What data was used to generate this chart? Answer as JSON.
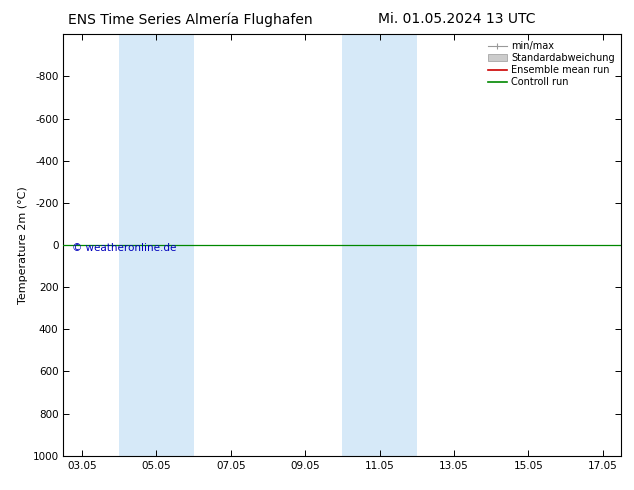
{
  "title_left": "ENS Time Series Almería Flughafen",
  "title_right": "Mi. 01.05.2024 13 UTC",
  "ylabel": "Temperature 2m (°C)",
  "ylim_bottom": 1000,
  "ylim_top": -1000,
  "yticks": [
    -800,
    -600,
    -400,
    -200,
    0,
    200,
    400,
    600,
    800,
    1000
  ],
  "xtick_labels": [
    "03.05",
    "05.05",
    "07.05",
    "09.05",
    "11.05",
    "13.05",
    "15.05",
    "17.05"
  ],
  "xtick_positions": [
    0,
    2,
    4,
    6,
    8,
    10,
    12,
    14
  ],
  "xlim": [
    -0.5,
    14.5
  ],
  "shaded_regions": [
    {
      "xstart": 1.0,
      "xend": 3.0,
      "color": "#d6e9f8"
    },
    {
      "xstart": 7.0,
      "xend": 9.0,
      "color": "#d6e9f8"
    }
  ],
  "control_run_y": 0,
  "ensemble_mean_y": 0,
  "watermark": "© weatheronline.de",
  "watermark_color": "#0000bb",
  "background_color": "#ffffff",
  "plot_bg_color": "#ffffff",
  "title_fontsize": 10,
  "axis_fontsize": 8,
  "tick_fontsize": 7.5,
  "legend_fontsize": 7
}
